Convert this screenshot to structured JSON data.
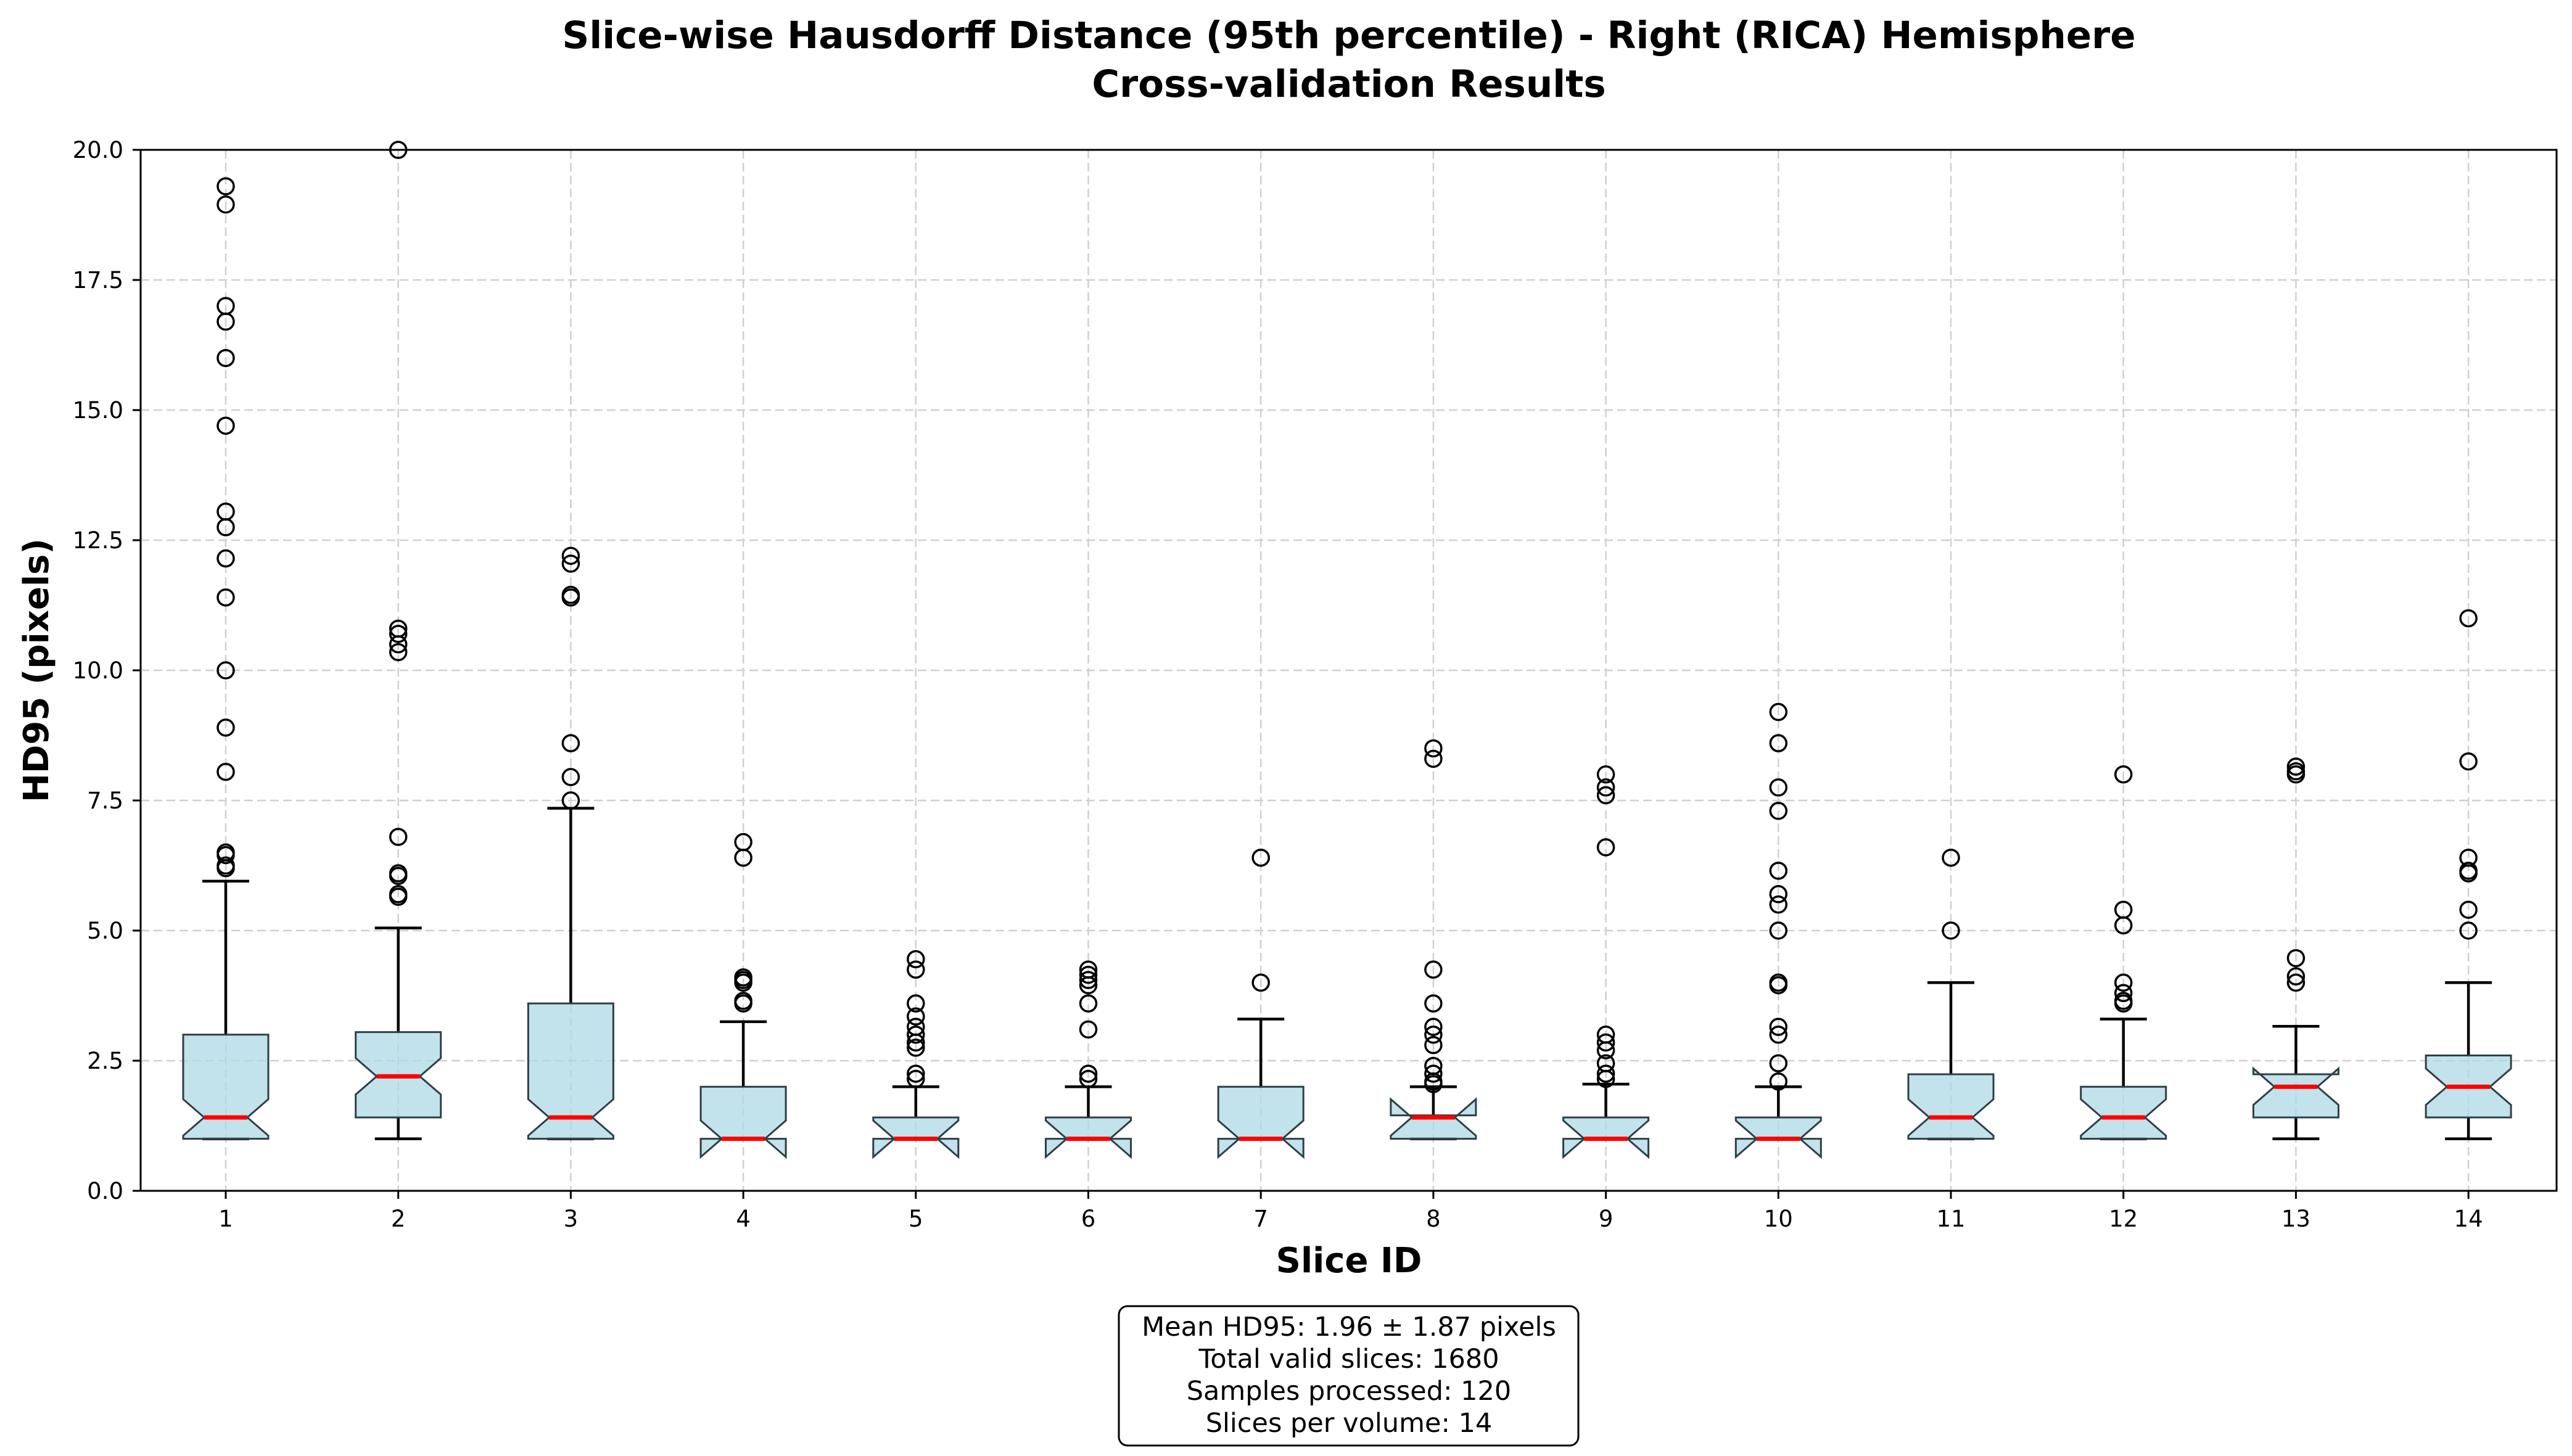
{
  "chart_data": {
    "type": "boxplot",
    "title": "Slice-wise Hausdorff Distance (95th percentile) - Right (RICA) Hemisphere",
    "subtitle": "Cross-validation Results",
    "xlabel": "Slice ID",
    "ylabel": "HD95 (pixels)",
    "ylim": [
      0,
      20
    ],
    "yticks": [
      0,
      2.5,
      5,
      7.5,
      10,
      12.5,
      15,
      17.5,
      20
    ],
    "ytick_labels": [
      "0.0",
      "2.5",
      "5.0",
      "7.5",
      "10.0",
      "12.5",
      "15.0",
      "17.5",
      "20.0"
    ],
    "grid": true,
    "notched": true,
    "colors": {
      "box_fill": "#add8e6",
      "box_edge": "#2f3f45",
      "median": "#ff0000",
      "whisker": "#000000",
      "outlier": "#000000",
      "grid": "#d0d0d0"
    },
    "categories": [
      "1",
      "2",
      "3",
      "4",
      "5",
      "6",
      "7",
      "8",
      "9",
      "10",
      "11",
      "12",
      "13",
      "14"
    ],
    "boxes": [
      {
        "id": "1",
        "whislo": 1.0,
        "q1": 1.0,
        "med": 1.41,
        "q3": 3.0,
        "whishi": 5.95,
        "fliers": [
          6.2,
          6.25,
          6.45,
          6.5,
          8.05,
          8.9,
          10.0,
          11.4,
          12.15,
          12.75,
          13.05,
          14.7,
          16.0,
          16.7,
          17.0,
          18.95,
          19.3
        ]
      },
      {
        "id": "2",
        "whislo": 1.0,
        "q1": 1.41,
        "med": 2.2,
        "q3": 3.05,
        "whishi": 5.05,
        "fliers": [
          5.65,
          5.7,
          6.05,
          6.1,
          6.8,
          10.35,
          10.5,
          10.7,
          10.8,
          20.0
        ]
      },
      {
        "id": "3",
        "whislo": 1.0,
        "q1": 1.0,
        "med": 1.41,
        "q3": 3.6,
        "whishi": 7.35,
        "fliers": [
          7.5,
          7.95,
          8.6,
          11.4,
          11.45,
          12.05,
          12.2
        ]
      },
      {
        "id": "4",
        "whislo": 1.0,
        "q1": 1.0,
        "med": 1.0,
        "q3": 2.0,
        "whishi": 3.25,
        "fliers": [
          3.6,
          3.65,
          4.0,
          4.05,
          4.1,
          6.4,
          6.7
        ]
      },
      {
        "id": "5",
        "whislo": 1.0,
        "q1": 1.0,
        "med": 1.0,
        "q3": 1.41,
        "whishi": 2.0,
        "fliers": [
          2.15,
          2.25,
          2.75,
          2.85,
          3.0,
          3.15,
          3.35,
          3.6,
          4.25,
          4.45
        ]
      },
      {
        "id": "6",
        "whislo": 1.0,
        "q1": 1.0,
        "med": 1.0,
        "q3": 1.41,
        "whishi": 2.0,
        "fliers": [
          2.15,
          2.25,
          3.1,
          3.6,
          3.95,
          4.05,
          4.15,
          4.25
        ]
      },
      {
        "id": "7",
        "whislo": 1.0,
        "q1": 1.0,
        "med": 1.0,
        "q3": 2.0,
        "whishi": 3.3,
        "fliers": [
          4.0,
          6.4
        ]
      },
      {
        "id": "8",
        "whislo": 1.0,
        "q1": 1.0,
        "med": 1.41,
        "q3": 1.45,
        "whishi": 2.0,
        "fliers": [
          2.05,
          2.1,
          2.25,
          2.4,
          2.8,
          3.0,
          3.15,
          3.6,
          4.25,
          8.3,
          8.5
        ]
      },
      {
        "id": "9",
        "whislo": 1.0,
        "q1": 1.0,
        "med": 1.0,
        "q3": 1.41,
        "whishi": 2.05,
        "fliers": [
          2.15,
          2.25,
          2.45,
          2.7,
          2.85,
          3.0,
          6.6,
          7.6,
          7.75,
          8.0
        ]
      },
      {
        "id": "10",
        "whislo": 1.0,
        "q1": 1.0,
        "med": 1.0,
        "q3": 1.41,
        "whishi": 2.0,
        "fliers": [
          2.1,
          2.45,
          3.0,
          3.15,
          3.95,
          4.0,
          5.0,
          5.5,
          5.7,
          6.15,
          7.3,
          7.75,
          8.6,
          9.2
        ]
      },
      {
        "id": "11",
        "whislo": 1.0,
        "q1": 1.0,
        "med": 1.41,
        "q3": 2.24,
        "whishi": 4.0,
        "fliers": [
          5.0,
          6.4
        ]
      },
      {
        "id": "12",
        "whislo": 1.0,
        "q1": 1.0,
        "med": 1.41,
        "q3": 2.0,
        "whishi": 3.3,
        "fliers": [
          3.6,
          3.65,
          3.8,
          4.0,
          5.1,
          5.4,
          8.0
        ]
      },
      {
        "id": "13",
        "whislo": 1.0,
        "q1": 1.41,
        "med": 2.0,
        "q3": 2.24,
        "whishi": 3.16,
        "fliers": [
          4.0,
          4.12,
          4.47,
          8.0,
          8.06,
          8.15
        ]
      },
      {
        "id": "14",
        "whislo": 1.0,
        "q1": 1.41,
        "med": 2.0,
        "q3": 2.6,
        "whishi": 4.0,
        "fliers": [
          5.0,
          5.4,
          6.1,
          6.15,
          6.4,
          8.25,
          11.0
        ]
      }
    ],
    "annotation": {
      "lines": [
        "Mean HD95: 1.96 ± 1.87 pixels",
        "Total valid slices: 1680",
        "Samples processed: 120",
        "Slices per volume: 14"
      ]
    }
  }
}
